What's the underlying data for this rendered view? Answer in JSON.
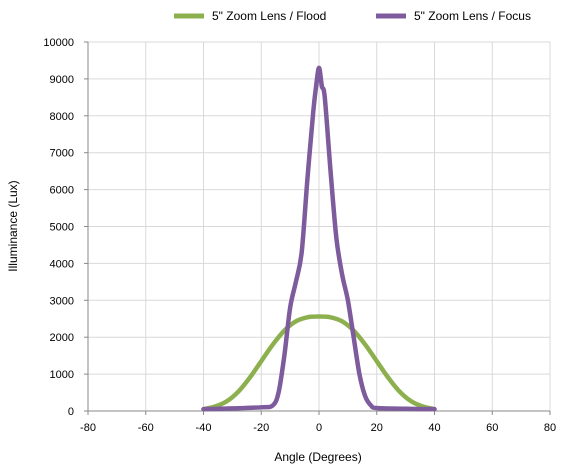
{
  "chart_data": {
    "type": "line",
    "xlabel": "Angle (Degrees)",
    "ylabel": "Illuminance (Lux)",
    "xlim": [
      -80,
      80
    ],
    "ylim": [
      0,
      10000
    ],
    "x_ticks": [
      "-80",
      "-60",
      "-40",
      "-20",
      "0",
      "20",
      "40",
      "60",
      "80"
    ],
    "y_ticks": [
      "0",
      "1000",
      "2000",
      "3000",
      "4000",
      "5000",
      "6000",
      "7000",
      "8000",
      "9000",
      "10000"
    ],
    "grid": true,
    "legend_position": "top-right",
    "series": [
      {
        "name": "5\" Zoom Lens / Flood",
        "color": "#8db04f",
        "x": [
          -40,
          -36,
          -32,
          -28,
          -24,
          -20,
          -16,
          -12,
          -8,
          -4,
          0,
          4,
          8,
          12,
          16,
          20,
          24,
          28,
          32,
          36,
          40
        ],
        "y": [
          50,
          120,
          260,
          520,
          900,
          1350,
          1800,
          2180,
          2430,
          2540,
          2560,
          2540,
          2430,
          2180,
          1800,
          1350,
          900,
          520,
          260,
          120,
          50
        ]
      },
      {
        "name": "5\" Zoom Lens / Focus",
        "color": "#7d5b9c",
        "x": [
          -40,
          -30,
          -20,
          -16,
          -14,
          -12,
          -10,
          -8,
          -6,
          -4,
          -2,
          -1,
          0,
          1,
          2,
          4,
          6,
          8,
          10,
          12,
          14,
          16,
          18,
          20,
          30,
          40
        ],
        "y": [
          50,
          70,
          100,
          150,
          500,
          1500,
          2800,
          3500,
          4300,
          6300,
          8100,
          8800,
          9300,
          8800,
          8500,
          6500,
          4700,
          3700,
          3000,
          2000,
          1000,
          400,
          150,
          80,
          60,
          50
        ]
      }
    ]
  }
}
